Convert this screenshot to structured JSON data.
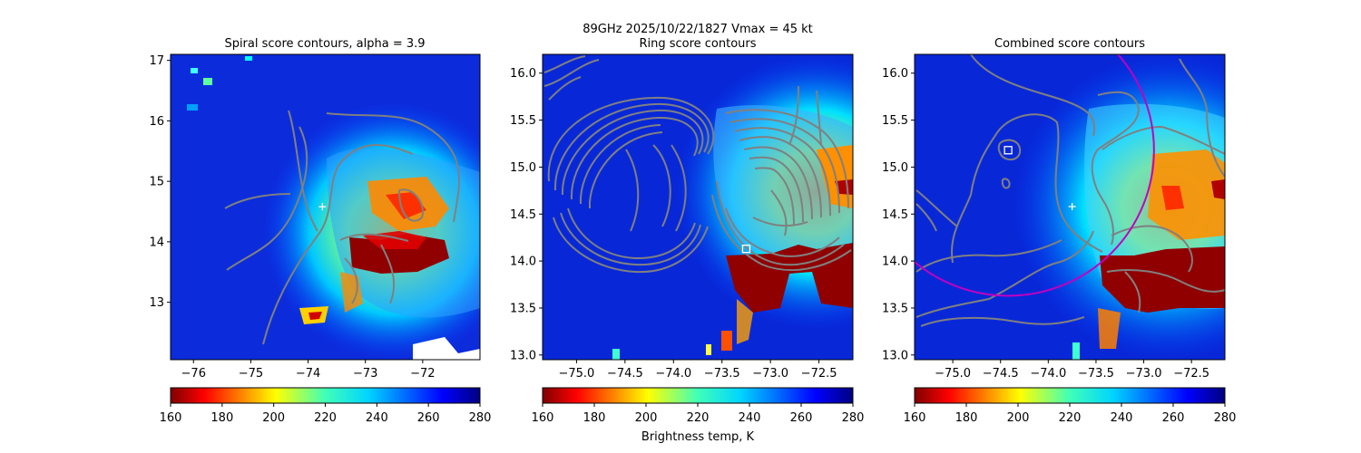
{
  "figure": {
    "suptitle_line1": "89GHz  2025/10/22/1827    Vmax = 45 kt",
    "xlabel": "Brightness temp, K"
  },
  "colors": {
    "contour": "#808080",
    "ring_circle": "#c000c0",
    "marker": "#ffffff",
    "axis": "#000000"
  },
  "chart_data": [
    {
      "type": "heatmap",
      "title": "Spiral score contours, alpha =  3.9",
      "colormap": "jet_r",
      "xlim": [
        -76.4,
        -71.0
      ],
      "ylim": [
        12.05,
        17.1
      ],
      "xticks": [
        -76,
        -75,
        -74,
        -73,
        -72
      ],
      "yticks": [
        13,
        14,
        15,
        16,
        17
      ],
      "xtick_labels": [
        "−76",
        "−75",
        "−74",
        "−73",
        "−72"
      ],
      "ytick_labels": [
        "13",
        "14",
        "15",
        "16",
        "17"
      ],
      "colorbar": {
        "min": 160,
        "max": 280,
        "ticks": [
          "160",
          "180",
          "200",
          "220",
          "240",
          "260",
          "280"
        ]
      },
      "markers": [
        {
          "shape": "plus",
          "x": -73.75,
          "y": 14.58
        }
      ],
      "circle": null
    },
    {
      "type": "heatmap",
      "title": "Ring score contours",
      "colormap": "jet_r",
      "xlim": [
        -75.35,
        -72.15
      ],
      "ylim": [
        12.95,
        16.2
      ],
      "xticks": [
        -75.0,
        -74.5,
        -74.0,
        -73.5,
        -73.0,
        -72.5
      ],
      "yticks": [
        13.0,
        13.5,
        14.0,
        14.5,
        15.0,
        15.5,
        16.0
      ],
      "xtick_labels": [
        "−75.0",
        "−74.5",
        "−74.0",
        "−73.5",
        "−73.0",
        "−72.5"
      ],
      "ytick_labels": [
        "13.0",
        "13.5",
        "14.0",
        "14.5",
        "15.0",
        "15.5",
        "16.0"
      ],
      "colorbar": {
        "min": 160,
        "max": 280,
        "ticks": [
          "160",
          "180",
          "200",
          "220",
          "240",
          "260",
          "280"
        ]
      },
      "markers": [
        {
          "shape": "square",
          "x": -73.25,
          "y": 14.13
        }
      ],
      "circle": null
    },
    {
      "type": "heatmap",
      "title": "Combined score contours",
      "colormap": "jet_r",
      "xlim": [
        -75.4,
        -72.15
      ],
      "ylim": [
        12.95,
        16.2
      ],
      "xticks": [
        -75.0,
        -74.5,
        -74.0,
        -73.5,
        -73.0,
        -72.5
      ],
      "yticks": [
        13.0,
        13.5,
        14.0,
        14.5,
        15.0,
        15.5,
        16.0
      ],
      "xtick_labels": [
        "−75.0",
        "−74.5",
        "−74.0",
        "−73.5",
        "−73.0",
        "−72.5"
      ],
      "ytick_labels": [
        "13.0",
        "13.5",
        "14.0",
        "14.5",
        "15.0",
        "15.5",
        "16.0"
      ],
      "colorbar": {
        "min": 160,
        "max": 280,
        "ticks": [
          "160",
          "180",
          "200",
          "220",
          "240",
          "260",
          "280"
        ]
      },
      "markers": [
        {
          "shape": "square",
          "x": -74.42,
          "y": 15.18
        },
        {
          "shape": "plus",
          "x": -73.75,
          "y": 14.58
        }
      ],
      "circle": {
        "cx": -74.42,
        "cy": 15.18,
        "r": 1.55
      }
    }
  ]
}
